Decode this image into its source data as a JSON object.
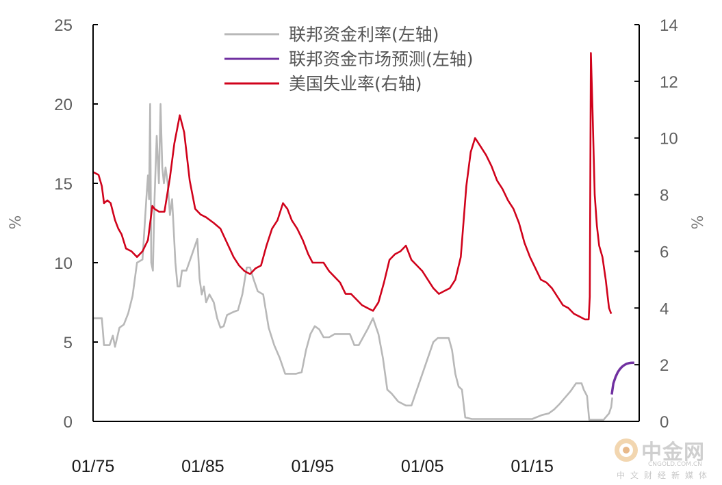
{
  "chart_data": {
    "type": "line",
    "y_left": {
      "label": "%",
      "ticks": [
        "0",
        "5",
        "10",
        "15",
        "20",
        "25"
      ],
      "lim": [
        0,
        25
      ]
    },
    "y_right": {
      "label": "%",
      "ticks": [
        "0",
        "2",
        "4",
        "6",
        "8",
        "10",
        "12",
        "14"
      ],
      "lim": [
        0,
        14
      ]
    },
    "x_ticks": [
      {
        "label": "01/75",
        "t": 1975.0
      },
      {
        "label": "01/85",
        "t": 1985.0
      },
      {
        "label": "01/95",
        "t": 1995.0
      },
      {
        "label": "01/05",
        "t": 2005.0
      },
      {
        "label": "01/15",
        "t": 2015.0
      }
    ],
    "xlim": [
      1975.0,
      2024.75
    ],
    "legend_position": "top-center",
    "colors": {
      "fed_funds": "#b8b8b8",
      "market_forecast": "#7030a0",
      "unemployment": "#d0021b"
    },
    "series": [
      {
        "name": "联邦资金利率(左轴)",
        "axis": "left",
        "x": [
          1975.0,
          1975.8,
          1976.0,
          1976.5,
          1976.8,
          1977.0,
          1977.4,
          1977.8,
          1978.2,
          1978.6,
          1979.0,
          1979.5,
          1979.85,
          1980.0,
          1980.1,
          1980.2,
          1980.3,
          1980.45,
          1980.6,
          1980.8,
          1981.0,
          1981.15,
          1981.3,
          1981.45,
          1981.6,
          1981.8,
          1982.0,
          1982.2,
          1982.5,
          1982.7,
          1982.9,
          1983.1,
          1983.5,
          1984.0,
          1984.5,
          1984.7,
          1984.9,
          1985.1,
          1985.3,
          1985.6,
          1986.0,
          1986.3,
          1986.6,
          1986.9,
          1987.2,
          1987.5,
          1987.8,
          1988.2,
          1988.6,
          1989.0,
          1989.3,
          1989.6,
          1990.0,
          1990.5,
          1991.0,
          1991.5,
          1992.0,
          1992.5,
          1993.0,
          1993.5,
          1994.0,
          1994.4,
          1994.8,
          1995.2,
          1995.6,
          1996.0,
          1996.5,
          1997.0,
          1997.5,
          1998.0,
          1998.4,
          1998.8,
          1999.2,
          1999.6,
          2000.0,
          2000.5,
          2001.0,
          2001.4,
          2001.8,
          2002.2,
          2002.8,
          2003.5,
          2004.0,
          2004.5,
          2005.0,
          2005.5,
          2006.0,
          2006.4,
          2007.0,
          2007.4,
          2007.7,
          2008.0,
          2008.3,
          2008.6,
          2008.9,
          2009.5,
          2010.0,
          2012.0,
          2014.0,
          2015.0,
          2015.9,
          2016.5,
          2017.0,
          2017.5,
          2018.0,
          2018.5,
          2019.0,
          2019.5,
          2019.7,
          2020.0,
          2020.2,
          2020.5,
          2021.0,
          2021.5,
          2022.0,
          2022.2,
          2022.3
        ],
        "y": [
          6.5,
          6.5,
          4.8,
          4.8,
          5.4,
          4.7,
          5.9,
          6.1,
          6.8,
          7.9,
          10.0,
          10.2,
          14.0,
          15.5,
          14.0,
          20.0,
          10.0,
          9.5,
          14.0,
          18.0,
          15.0,
          20.0,
          16.0,
          15.0,
          16.0,
          15.0,
          13.0,
          14.0,
          10.0,
          8.5,
          8.5,
          9.5,
          9.5,
          10.5,
          11.5,
          9.0,
          8.0,
          8.5,
          7.5,
          8.0,
          7.5,
          6.5,
          5.9,
          6.0,
          6.7,
          6.8,
          6.9,
          7.0,
          8.0,
          9.7,
          9.7,
          9.0,
          8.2,
          8.0,
          5.9,
          4.8,
          4.0,
          3.0,
          3.0,
          3.0,
          3.1,
          4.5,
          5.5,
          6.0,
          5.8,
          5.3,
          5.3,
          5.5,
          5.5,
          5.5,
          5.5,
          4.8,
          4.8,
          5.3,
          5.8,
          6.5,
          5.5,
          4.0,
          2.0,
          1.75,
          1.25,
          1.0,
          1.0,
          2.0,
          3.0,
          4.0,
          5.0,
          5.25,
          5.25,
          5.25,
          4.5,
          3.0,
          2.2,
          2.0,
          0.25,
          0.15,
          0.15,
          0.15,
          0.15,
          0.15,
          0.4,
          0.5,
          0.75,
          1.1,
          1.5,
          1.9,
          2.4,
          2.4,
          2.0,
          1.6,
          0.1,
          0.1,
          0.1,
          0.1,
          0.5,
          0.9,
          1.5
        ]
      },
      {
        "name": "联邦资金市场预测(左轴)",
        "axis": "left",
        "x": [
          2022.25,
          2022.4,
          2022.6,
          2022.8,
          2023.0,
          2023.2,
          2023.4,
          2023.6,
          2023.8,
          2024.0,
          2024.3
        ],
        "y": [
          1.7,
          2.4,
          2.8,
          3.1,
          3.3,
          3.45,
          3.55,
          3.63,
          3.67,
          3.69,
          3.7
        ]
      },
      {
        "name": "美国失业率(右轴)",
        "axis": "right",
        "x": [
          1975.0,
          1975.5,
          1975.8,
          1976.0,
          1976.3,
          1976.6,
          1977.0,
          1977.3,
          1977.6,
          1978.0,
          1978.5,
          1979.0,
          1979.5,
          1980.0,
          1980.4,
          1980.6,
          1981.0,
          1981.5,
          1982.0,
          1982.4,
          1982.9,
          1983.3,
          1983.8,
          1984.3,
          1984.8,
          1985.3,
          1986.0,
          1986.6,
          1987.2,
          1987.8,
          1988.3,
          1988.8,
          1989.3,
          1989.8,
          1990.3,
          1990.8,
          1991.3,
          1991.8,
          1992.3,
          1992.7,
          1993.1,
          1993.6,
          1994.1,
          1994.6,
          1995.0,
          1995.5,
          1996.0,
          1996.5,
          1997.0,
          1997.5,
          1998.0,
          1998.5,
          1999.0,
          1999.5,
          2000.0,
          2000.5,
          2001.0,
          2001.5,
          2002.0,
          2002.5,
          2003.0,
          2003.5,
          2004.0,
          2004.5,
          2005.0,
          2005.5,
          2006.0,
          2006.5,
          2007.0,
          2007.5,
          2008.0,
          2008.5,
          2009.0,
          2009.4,
          2009.8,
          2010.3,
          2010.8,
          2011.3,
          2011.8,
          2012.3,
          2012.8,
          2013.3,
          2013.8,
          2014.3,
          2014.8,
          2015.3,
          2015.8,
          2016.3,
          2016.8,
          2017.3,
          2017.8,
          2018.3,
          2018.8,
          2019.3,
          2019.8,
          2020.15,
          2020.25,
          2020.35,
          2020.5,
          2020.7,
          2020.9,
          2021.1,
          2021.4,
          2021.7,
          2022.0,
          2022.2
        ],
        "y": [
          8.8,
          8.7,
          8.3,
          7.7,
          7.8,
          7.7,
          7.1,
          6.8,
          6.6,
          6.1,
          6.0,
          5.8,
          6.0,
          6.4,
          7.6,
          7.5,
          7.4,
          7.4,
          8.6,
          9.8,
          10.8,
          10.2,
          8.5,
          7.5,
          7.3,
          7.2,
          7.0,
          6.8,
          6.3,
          5.8,
          5.5,
          5.3,
          5.2,
          5.4,
          5.5,
          6.2,
          6.8,
          7.1,
          7.7,
          7.5,
          7.1,
          6.8,
          6.4,
          5.9,
          5.6,
          5.6,
          5.6,
          5.3,
          5.1,
          4.9,
          4.5,
          4.5,
          4.3,
          4.1,
          4.0,
          3.9,
          4.2,
          4.9,
          5.7,
          5.9,
          6.0,
          6.2,
          5.7,
          5.5,
          5.3,
          5.0,
          4.7,
          4.5,
          4.6,
          4.7,
          5.0,
          5.8,
          8.3,
          9.5,
          10.0,
          9.7,
          9.4,
          9.0,
          8.5,
          8.2,
          7.8,
          7.5,
          7.0,
          6.3,
          5.8,
          5.4,
          5.0,
          4.9,
          4.7,
          4.4,
          4.1,
          4.0,
          3.8,
          3.7,
          3.6,
          3.6,
          4.4,
          13.0,
          11.0,
          8.0,
          6.9,
          6.2,
          5.8,
          5.0,
          4.0,
          3.8
        ]
      }
    ]
  },
  "watermark": {
    "brand": "中金网",
    "site": "CNGOLD.COM.CN",
    "tagline": "中文财经新媒体",
    "icon": "cngold-logo-icon"
  }
}
